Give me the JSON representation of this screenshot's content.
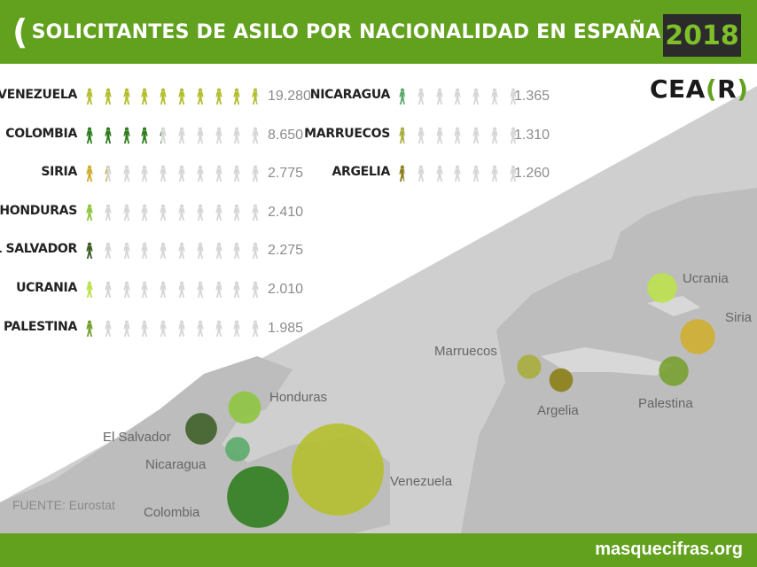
{
  "header": {
    "title": "SOLICITANTES DE ASILO POR NACIONALIDAD EN ESPAÑA",
    "year": "2018"
  },
  "logo": {
    "prefix": "CEA",
    "open": "(",
    "letter": "R",
    "close": ")"
  },
  "footer": {
    "site": "masquecifras.org"
  },
  "source": "FUENTE: Eurostat",
  "colors": {
    "header_green": "#62a11e",
    "empty_icon": "#d6d6d6"
  },
  "chart_data": {
    "type": "pictogram",
    "unit_per_icon": 2000,
    "series": [
      {
        "name": "VENEZUELA",
        "map_label": "Venezuela",
        "value": 19280,
        "value_label": "19.280",
        "color": "#b5bf2a"
      },
      {
        "name": "COLOMBIA",
        "map_label": "Colombia",
        "value": 8650,
        "value_label": "8.650",
        "color": "#2e7d1c"
      },
      {
        "name": "SIRIA",
        "map_label": "Siria",
        "value": 2775,
        "value_label": "2.775",
        "color": "#cfae2c"
      },
      {
        "name": "HONDURAS",
        "map_label": "Honduras",
        "value": 2410,
        "value_label": "2.410",
        "color": "#8dc63f"
      },
      {
        "name": "EL SALVADOR",
        "map_label": "El Salvador",
        "value": 2275,
        "value_label": "2.275",
        "color": "#3b5e24"
      },
      {
        "name": "UCRANIA",
        "map_label": "Ucrania",
        "value": 2010,
        "value_label": "2.010",
        "color": "#bce34a"
      },
      {
        "name": "PALESTINA",
        "map_label": "Palestina",
        "value": 1985,
        "value_label": "1.985",
        "color": "#76a12e"
      },
      {
        "name": "NICARAGUA",
        "map_label": "Nicaragua",
        "value": 1365,
        "value_label": "1.365",
        "color": "#5aab6a"
      },
      {
        "name": "MARRUECOS",
        "map_label": "Marruecos",
        "value": 1310,
        "value_label": "1.310",
        "color": "#a8ad3a"
      },
      {
        "name": "ARGELIA",
        "map_label": "Argelia",
        "value": 1260,
        "value_label": "1.260",
        "color": "#8a7d12"
      }
    ]
  }
}
